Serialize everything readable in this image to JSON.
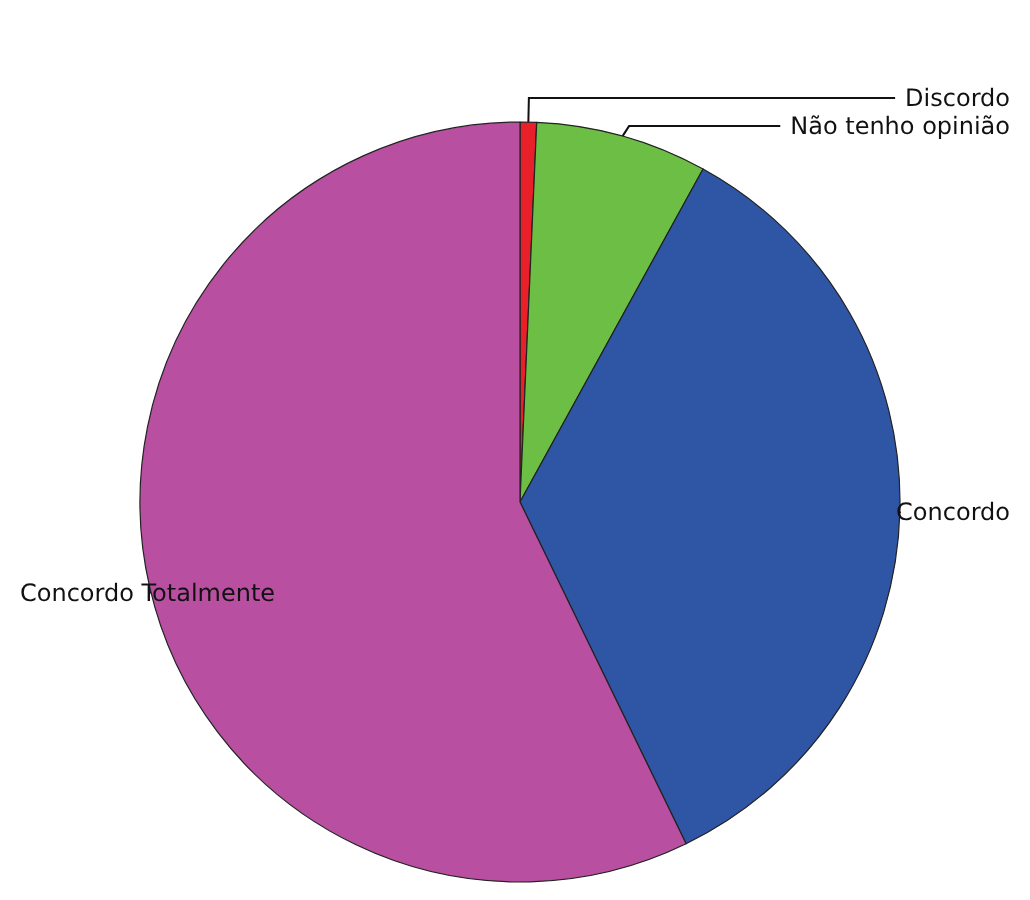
{
  "chart_data": {
    "type": "pie",
    "categories": [
      "Discordo",
      "Não tenho opinião",
      "Concordo",
      "Concordo Totalmente"
    ],
    "values": [
      0.7,
      7.3,
      34.8,
      57.2
    ],
    "colors": [
      "#e8202a",
      "#6cbf44",
      "#2f55a5",
      "#b84fa0"
    ],
    "legend": false
  }
}
